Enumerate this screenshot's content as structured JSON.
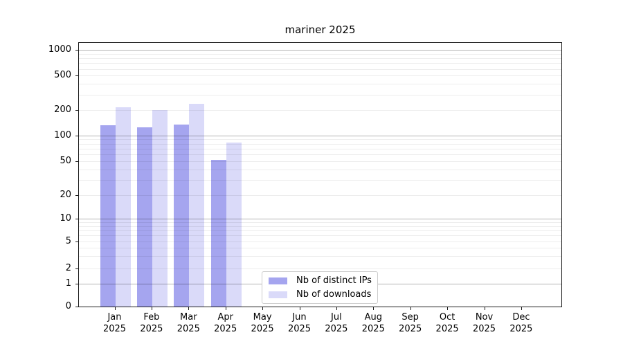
{
  "chart_data": {
    "type": "bar",
    "title": "mariner 2025",
    "categories": [
      "Jan",
      "Feb",
      "Mar",
      "Apr",
      "May",
      "Jun",
      "Jul",
      "Aug",
      "Sep",
      "Oct",
      "Nov",
      "Dec"
    ],
    "category_year": "2025",
    "series": [
      {
        "name": "Nb of distinct IPs",
        "color": "#a5a5ef",
        "values": [
          132,
          124,
          133,
          52,
          0,
          0,
          0,
          0,
          0,
          0,
          0,
          0
        ]
      },
      {
        "name": "Nb of downloads",
        "color": "#dadaf9",
        "values": [
          213,
          200,
          235,
          83,
          0,
          0,
          0,
          0,
          0,
          0,
          0,
          0
        ]
      }
    ],
    "y_axis": {
      "scale": "symlog",
      "ticks": [
        0,
        1,
        2,
        5,
        10,
        20,
        50,
        100,
        200,
        500,
        1000
      ],
      "major_gridlines": [
        1,
        10,
        100,
        1000
      ],
      "ylim": [
        0,
        1200
      ]
    },
    "grid": true,
    "legend": {
      "position": "bottom-center",
      "entries": [
        "Nb of distinct IPs",
        "Nb of downloads"
      ]
    },
    "colors": {
      "major_grid": "#b0b0b0",
      "minor_grid": "#ebebeb",
      "axis": "#1a1a1a",
      "background": "#ffffff"
    }
  }
}
